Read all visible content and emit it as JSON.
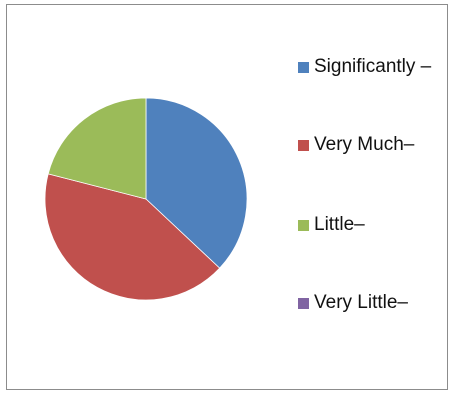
{
  "chart_data": {
    "type": "pie",
    "title": "",
    "categories": [
      "Significantly –",
      "Very Much–",
      "Little–",
      "Very Little–"
    ],
    "values": [
      37,
      42,
      21,
      0
    ],
    "colors": [
      "#4f81bd",
      "#c0504d",
      "#9bbb59",
      "#8064a2"
    ],
    "legend_placement": "right"
  }
}
